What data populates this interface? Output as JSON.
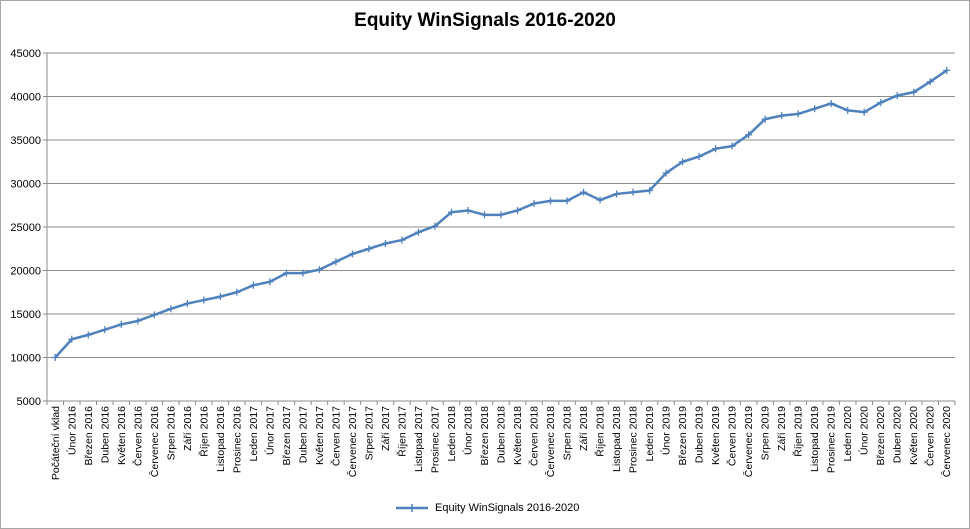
{
  "chart_data": {
    "type": "line",
    "title": "Equity WinSignals 2016-2020",
    "xlabel": "",
    "ylabel": "",
    "ylim": [
      5000,
      45000
    ],
    "yticks": [
      5000,
      10000,
      15000,
      20000,
      25000,
      30000,
      35000,
      40000,
      45000
    ],
    "grid": true,
    "legend_position": "bottom",
    "categories": [
      "Počáteční vklad",
      "Únor 2016",
      "Březen 2016",
      "Duben 2016",
      "Květen 2016",
      "Červen 2016",
      "Červenec 2016",
      "Srpen 2016",
      "Září 2016",
      "Říjen 2016",
      "Listopad 2016",
      "Prosinec 2016",
      "Leden 2017",
      "Únor 2017",
      "Březen 2017",
      "Duben 2017",
      "Květen 2017",
      "Červen 2017",
      "Červenec 2017",
      "Srpen 2017",
      "Září 2017",
      "Říjen 2017",
      "Listopad 2017",
      "Prosinec 2017",
      "Leden 2018",
      "Únor 2018",
      "Březen 2018",
      "Duben 2018",
      "Květen 2018",
      "Červen 2018",
      "Červenec 2018",
      "Srpen 2018",
      "Září 2018",
      "Říjen 2018",
      "Listopad 2018",
      "Prosinec 2018",
      "Leden 2019",
      "Únor 2019",
      "Březen 2019",
      "Duben 2019",
      "Květen 2019",
      "Červen 2019",
      "Červenec 2019",
      "Srpen 2019",
      "Září 2019",
      "Říjen 2019",
      "Listopad 2019",
      "Prosinec 2019",
      "Leden 2020",
      "Únor 2020",
      "Březen 2020",
      "Duben 2020",
      "Květen 2020",
      "Červen 2020",
      "Červenec 2020"
    ],
    "series": [
      {
        "name": "Equity WinSignals 2016-2020",
        "color": "#4f81bd",
        "marker": "plus",
        "values": [
          10000,
          12100,
          12600,
          13200,
          13800,
          14200,
          14900,
          15600,
          16200,
          16600,
          17000,
          17500,
          18300,
          18700,
          19700,
          19700,
          20100,
          21000,
          21900,
          22500,
          23100,
          23500,
          24400,
          25100,
          26700,
          26900,
          26400,
          26400,
          26900,
          27700,
          28000,
          28000,
          29000,
          28100,
          28800,
          29000,
          29200,
          31200,
          32500,
          33100,
          34000,
          34300,
          35600,
          37400,
          37800,
          38000,
          38600,
          39200,
          38400,
          38200,
          39300,
          40100,
          40500,
          41700,
          43000
        ]
      }
    ]
  }
}
